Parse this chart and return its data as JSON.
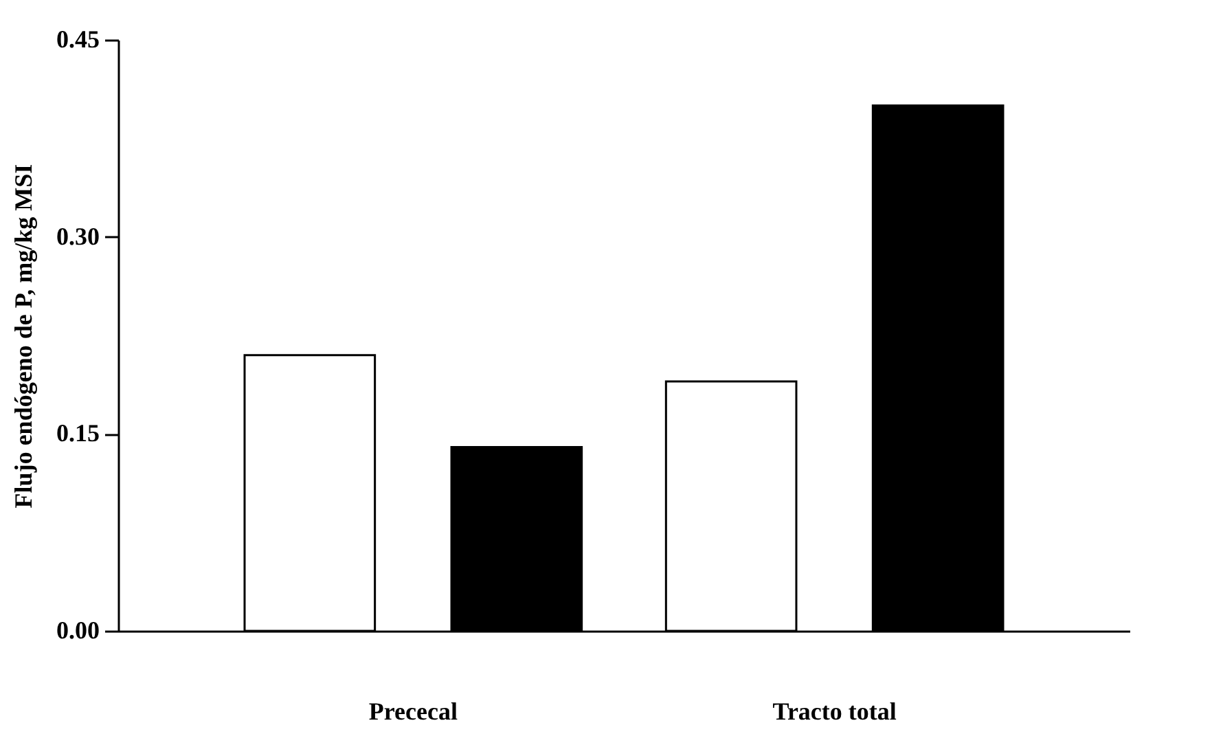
{
  "chart_data": {
    "type": "bar",
    "ylabel": "Flujo endógeno de P, mg/kg MSI",
    "categories": [
      "Prececal",
      "Tracto total"
    ],
    "series": [
      {
        "color": "#ffffff",
        "values": [
          0.21,
          0.19
        ]
      },
      {
        "color": "#000000",
        "values": [
          0.14,
          0.4
        ]
      }
    ],
    "ylim": [
      0,
      0.45
    ],
    "yticks": [
      {
        "value": 0,
        "label": "0.00"
      },
      {
        "value": 0.15,
        "label": "0.15"
      },
      {
        "value": 0.3,
        "label": "0.30"
      },
      {
        "value": 0.45,
        "label": "0.45"
      }
    ],
    "grid": false,
    "legend": false
  }
}
